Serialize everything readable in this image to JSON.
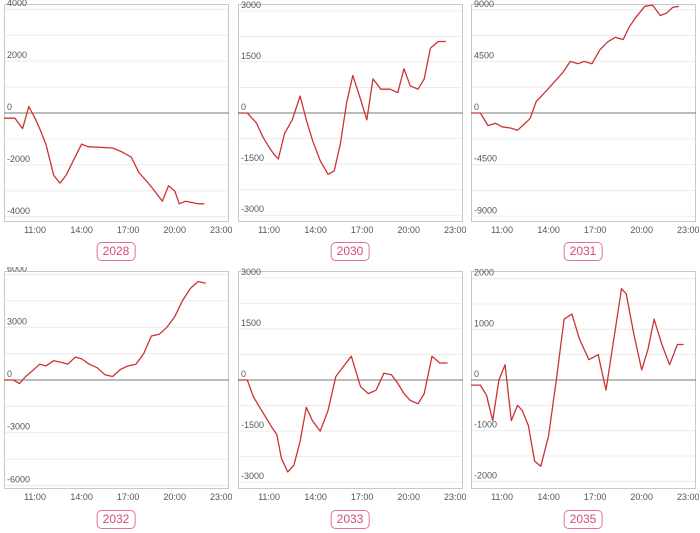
{
  "colors": {
    "line": "#cc3333",
    "grid": "#ececec",
    "frame": "#c8c8c8",
    "zero_line": "#777777",
    "tick_text": "#555555",
    "badge_border": "#e56f97",
    "badge_text": "#d54a7c"
  },
  "chart_data": [
    {
      "type": "line",
      "label": "2028",
      "x_ticks": [
        "11:00",
        "14:00",
        "17:00",
        "20:00",
        "23:00"
      ],
      "y_ticks": [
        4000,
        2000,
        0,
        -2000,
        -4000
      ],
      "y_tick_labels": [
        "4000",
        "2000",
        "0",
        "-2000",
        "-4000"
      ],
      "xlim": [
        9.0,
        23.5
      ],
      "ylim": [
        -4200,
        4200
      ],
      "series": [
        {
          "x": [
            9.0,
            9.7,
            10.2,
            10.6,
            11.0,
            11.3,
            11.7,
            12.2,
            12.6,
            13.0,
            13.5,
            14.0,
            14.4,
            16.0,
            16.6,
            17.2,
            17.7,
            18.3,
            18.7,
            19.2,
            19.6,
            20.0,
            20.3,
            20.7,
            21.1,
            21.5,
            21.9
          ],
          "y": [
            -200,
            -200,
            -600,
            250,
            -200,
            -600,
            -1200,
            -2400,
            -2700,
            -2400,
            -1800,
            -1200,
            -1300,
            -1350,
            -1500,
            -1700,
            -2300,
            -2700,
            -3000,
            -3400,
            -2800,
            -3000,
            -3500,
            -3400,
            -3450,
            -3500,
            -3500
          ]
        }
      ]
    },
    {
      "type": "line",
      "label": "2030",
      "x_ticks": [
        "11:00",
        "14:00",
        "17:00",
        "20:00",
        "23:00"
      ],
      "y_ticks": [
        3000,
        1500,
        0,
        -1500,
        -3000
      ],
      "y_tick_labels": [
        "3000",
        "1500",
        "0",
        "-1500",
        "-3000"
      ],
      "xlim": [
        9.0,
        23.5
      ],
      "ylim": [
        -3200,
        3200
      ],
      "series": [
        {
          "x": [
            9.0,
            9.6,
            10.2,
            10.6,
            11.0,
            11.3,
            11.6,
            12.0,
            12.5,
            13.0,
            13.4,
            13.8,
            14.3,
            14.8,
            15.2,
            15.6,
            16.0,
            16.4,
            16.9,
            17.3,
            17.7,
            18.2,
            18.8,
            19.3,
            19.7,
            20.1,
            20.6,
            21.0,
            21.4,
            21.9,
            22.4
          ],
          "y": [
            0,
            0,
            -300,
            -700,
            -1000,
            -1200,
            -1350,
            -600,
            -200,
            500,
            -200,
            -800,
            -1400,
            -1800,
            -1700,
            -900,
            300,
            1100,
            400,
            -200,
            1000,
            700,
            700,
            600,
            1300,
            800,
            700,
            1000,
            1900,
            2100,
            2100
          ]
        }
      ]
    },
    {
      "type": "line",
      "label": "2031",
      "x_ticks": [
        "11:00",
        "14:00",
        "17:00",
        "20:00",
        "23:00"
      ],
      "y_ticks": [
        9000,
        4500,
        0,
        -4500,
        -9000
      ],
      "y_tick_labels": [
        "9000",
        "4500",
        "0",
        "-4500",
        "-9000"
      ],
      "xlim": [
        9.0,
        23.5
      ],
      "ylim": [
        -9500,
        9500
      ],
      "series": [
        {
          "x": [
            9.0,
            9.6,
            10.1,
            10.6,
            11.0,
            11.5,
            12.0,
            12.4,
            12.8,
            13.2,
            13.7,
            14.3,
            14.9,
            15.4,
            15.9,
            16.3,
            16.8,
            17.3,
            17.8,
            18.3,
            18.8,
            19.2,
            19.6,
            20.2,
            20.7,
            21.2,
            21.6,
            22.0,
            22.4
          ],
          "y": [
            0,
            0,
            -1100,
            -900,
            -1200,
            -1300,
            -1500,
            -1000,
            -500,
            1000,
            1700,
            2600,
            3500,
            4500,
            4300,
            4500,
            4300,
            5500,
            6200,
            6600,
            6400,
            7500,
            8300,
            9300,
            9400,
            8500,
            8700,
            9200,
            9300
          ]
        }
      ]
    },
    {
      "type": "line",
      "label": "2032",
      "x_ticks": [
        "11:00",
        "14:00",
        "17:00",
        "20:00",
        "23:00"
      ],
      "y_ticks": [
        6000,
        3000,
        0,
        -3000,
        -6000
      ],
      "y_tick_labels": [
        "6000",
        "3000",
        "0",
        "-3000",
        "-6000"
      ],
      "xlim": [
        9.0,
        23.5
      ],
      "ylim": [
        -6200,
        6200
      ],
      "series": [
        {
          "x": [
            9.0,
            9.6,
            10.0,
            10.4,
            10.8,
            11.3,
            11.7,
            12.2,
            12.7,
            13.1,
            13.6,
            14.0,
            14.5,
            15.0,
            15.5,
            16.0,
            16.5,
            17.0,
            17.5,
            18.0,
            18.5,
            19.0,
            19.5,
            20.0,
            20.5,
            21.0,
            21.5,
            22.0
          ],
          "y": [
            0,
            0,
            -200,
            200,
            500,
            900,
            800,
            1100,
            1000,
            900,
            1300,
            1200,
            900,
            700,
            300,
            200,
            600,
            800,
            900,
            1500,
            2500,
            2600,
            3000,
            3600,
            4500,
            5200,
            5600,
            5500
          ]
        }
      ]
    },
    {
      "type": "line",
      "label": "2033",
      "x_ticks": [
        "11:00",
        "14:00",
        "17:00",
        "20:00",
        "23:00"
      ],
      "y_ticks": [
        3000,
        1500,
        0,
        -1500,
        -3000
      ],
      "y_tick_labels": [
        "3000",
        "1500",
        "0",
        "-1500",
        "-3000"
      ],
      "xlim": [
        9.0,
        23.5
      ],
      "ylim": [
        -3200,
        3200
      ],
      "series": [
        {
          "x": [
            9.0,
            9.6,
            10.0,
            10.4,
            10.8,
            11.2,
            11.5,
            11.8,
            12.2,
            12.6,
            13.0,
            13.4,
            13.8,
            14.3,
            14.8,
            15.3,
            15.8,
            16.3,
            16.9,
            17.4,
            17.9,
            18.4,
            18.9,
            19.3,
            19.7,
            20.1,
            20.6,
            21.0,
            21.5,
            22.0,
            22.5
          ],
          "y": [
            0,
            0,
            -500,
            -800,
            -1100,
            -1400,
            -1600,
            -2300,
            -2700,
            -2500,
            -1800,
            -800,
            -1200,
            -1500,
            -900,
            100,
            400,
            700,
            -200,
            -400,
            -300,
            200,
            150,
            -100,
            -400,
            -600,
            -700,
            -400,
            700,
            500,
            500
          ]
        }
      ]
    },
    {
      "type": "line",
      "label": "2035",
      "x_ticks": [
        "11:00",
        "14:00",
        "17:00",
        "20:00",
        "23:00"
      ],
      "y_ticks": [
        2000,
        1000,
        0,
        -1000,
        -2000
      ],
      "y_tick_labels": [
        "2000",
        "1000",
        "0",
        "-1000",
        "-2000"
      ],
      "xlim": [
        9.0,
        23.5
      ],
      "ylim": [
        -2150,
        2150
      ],
      "series": [
        {
          "x": [
            9.0,
            9.6,
            10.0,
            10.4,
            10.8,
            11.2,
            11.6,
            12.0,
            12.3,
            12.7,
            13.1,
            13.5,
            14.0,
            14.5,
            15.0,
            15.5,
            16.0,
            16.6,
            17.2,
            17.7,
            18.3,
            18.7,
            19.0,
            19.5,
            20.0,
            20.4,
            20.8,
            21.3,
            21.8,
            22.3,
            22.7
          ],
          "y": [
            -100,
            -100,
            -300,
            -800,
            0,
            300,
            -800,
            -500,
            -600,
            -900,
            -1600,
            -1700,
            -1100,
            0,
            1200,
            1300,
            800,
            400,
            500,
            -200,
            1000,
            1800,
            1700,
            900,
            200,
            600,
            1200,
            700,
            300,
            700,
            700
          ]
        }
      ]
    }
  ]
}
